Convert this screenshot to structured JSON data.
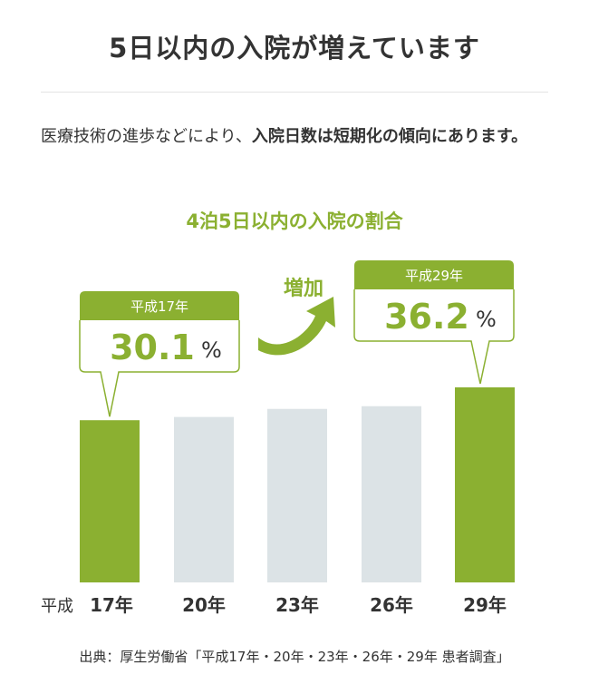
{
  "page": {
    "title": "5日以内の入院が増えています",
    "intro_plain": "医療技術の進歩などにより、",
    "intro_bold": "入院日数は短期化の傾向にあります。",
    "source": "出典：厚生労働省「平成17年・20年・23年・26年・29年 患者調査」"
  },
  "colors": {
    "accent_green": "#8bb031",
    "bar_gray": "#dce3e6",
    "text": "#333333"
  },
  "chart_data": {
    "type": "bar",
    "title": "4泊5日以内の入院の割合",
    "era_prefix": "平成",
    "categories": [
      "17年",
      "20年",
      "23年",
      "26年",
      "29年"
    ],
    "values": [
      30.1,
      30.7,
      32.2,
      32.7,
      36.2
    ],
    "highlighted": [
      true,
      false,
      false,
      false,
      true
    ],
    "unit": "%",
    "ylim": [
      0,
      40
    ],
    "grid": false,
    "callouts": [
      {
        "category_index": 0,
        "label": "平成17年",
        "value": "30.1",
        "unit": "%"
      },
      {
        "category_index": 4,
        "label": "平成29年",
        "value": "36.2",
        "unit": "%"
      }
    ],
    "annotation": "増加"
  }
}
